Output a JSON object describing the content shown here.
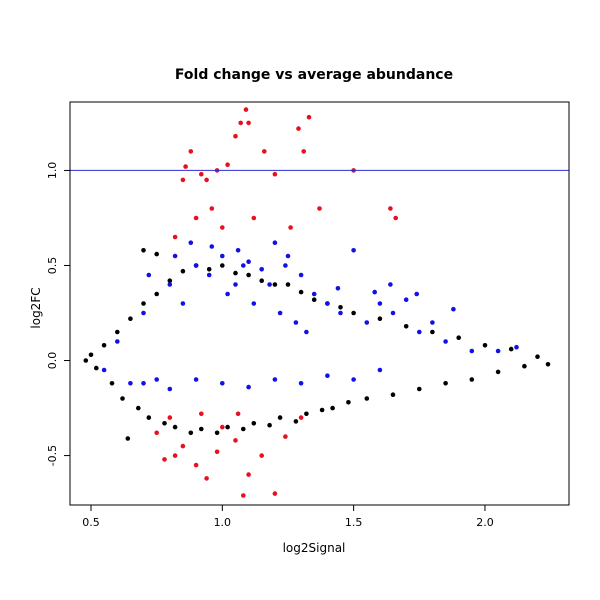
{
  "chart_data": {
    "type": "scatter",
    "title": "Fold change vs average abundance",
    "xlabel": "log2Signal",
    "ylabel": "log2FC",
    "xlim": [
      0.42,
      2.32
    ],
    "ylim": [
      -0.76,
      1.36
    ],
    "x_ticks": [
      {
        "value": 0.5,
        "label": "0.5"
      },
      {
        "value": 1.0,
        "label": "1.0"
      },
      {
        "value": 1.5,
        "label": "1.5"
      },
      {
        "value": 2.0,
        "label": "2.0"
      }
    ],
    "y_ticks": [
      {
        "value": -0.5,
        "label": "-0.5"
      },
      {
        "value": 0.0,
        "label": "0.0"
      },
      {
        "value": 0.5,
        "label": "0.5"
      },
      {
        "value": 1.0,
        "label": "1.0"
      }
    ],
    "reference_line": {
      "axis": "y",
      "value": 1.0,
      "color": "#2b2bd6"
    },
    "grid": false,
    "legend": "none",
    "colors": {
      "black": "#000000",
      "blue": "#1010e8",
      "red": "#e8101e"
    },
    "series": [
      {
        "color": "black",
        "points": [
          [
            0.48,
            0.0
          ],
          [
            0.5,
            0.03
          ],
          [
            0.52,
            -0.04
          ],
          [
            0.55,
            0.08
          ],
          [
            0.58,
            -0.12
          ],
          [
            0.6,
            0.15
          ],
          [
            0.62,
            -0.2
          ],
          [
            0.65,
            0.22
          ],
          [
            0.68,
            -0.25
          ],
          [
            0.7,
            0.3
          ],
          [
            0.72,
            -0.3
          ],
          [
            0.75,
            0.35
          ],
          [
            0.78,
            -0.33
          ],
          [
            0.8,
            0.42
          ],
          [
            0.82,
            -0.35
          ],
          [
            0.85,
            0.47
          ],
          [
            0.88,
            -0.38
          ],
          [
            0.9,
            0.5
          ],
          [
            0.92,
            -0.36
          ],
          [
            0.95,
            0.48
          ],
          [
            0.98,
            -0.38
          ],
          [
            1.0,
            0.5
          ],
          [
            1.02,
            -0.35
          ],
          [
            1.05,
            0.46
          ],
          [
            1.08,
            -0.36
          ],
          [
            1.1,
            0.45
          ],
          [
            1.12,
            -0.33
          ],
          [
            1.15,
            0.42
          ],
          [
            1.18,
            -0.34
          ],
          [
            1.2,
            0.4
          ],
          [
            1.22,
            -0.3
          ],
          [
            1.25,
            0.4
          ],
          [
            1.28,
            -0.32
          ],
          [
            1.3,
            0.36
          ],
          [
            1.32,
            -0.28
          ],
          [
            1.35,
            0.32
          ],
          [
            1.38,
            -0.26
          ],
          [
            1.4,
            0.3
          ],
          [
            1.42,
            -0.25
          ],
          [
            1.45,
            0.28
          ],
          [
            1.48,
            -0.22
          ],
          [
            1.5,
            0.25
          ],
          [
            1.55,
            -0.2
          ],
          [
            1.6,
            0.22
          ],
          [
            1.65,
            -0.18
          ],
          [
            1.7,
            0.18
          ],
          [
            1.75,
            -0.15
          ],
          [
            1.8,
            0.15
          ],
          [
            1.85,
            -0.12
          ],
          [
            1.9,
            0.12
          ],
          [
            1.95,
            -0.1
          ],
          [
            2.0,
            0.08
          ],
          [
            2.05,
            -0.06
          ],
          [
            2.1,
            0.06
          ],
          [
            2.15,
            -0.03
          ],
          [
            2.2,
            0.02
          ],
          [
            2.24,
            -0.02
          ],
          [
            0.7,
            0.58
          ],
          [
            0.75,
            0.56
          ],
          [
            0.64,
            -0.41
          ]
        ]
      },
      {
        "color": "blue",
        "points": [
          [
            0.55,
            -0.05
          ],
          [
            0.6,
            0.1
          ],
          [
            0.65,
            -0.12
          ],
          [
            0.7,
            0.25
          ],
          [
            0.75,
            -0.1
          ],
          [
            0.8,
            0.4
          ],
          [
            0.85,
            0.3
          ],
          [
            0.9,
            0.5
          ],
          [
            0.95,
            0.45
          ],
          [
            1.0,
            0.55
          ],
          [
            1.02,
            0.35
          ],
          [
            1.05,
            0.4
          ],
          [
            1.08,
            0.5
          ],
          [
            1.1,
            0.52
          ],
          [
            1.12,
            0.3
          ],
          [
            1.15,
            0.48
          ],
          [
            1.18,
            0.4
          ],
          [
            1.2,
            0.62
          ],
          [
            1.22,
            0.25
          ],
          [
            1.25,
            0.55
          ],
          [
            1.28,
            0.2
          ],
          [
            1.3,
            0.45
          ],
          [
            1.32,
            0.15
          ],
          [
            1.35,
            0.35
          ],
          [
            1.4,
            0.3
          ],
          [
            1.45,
            0.25
          ],
          [
            1.5,
            0.58
          ],
          [
            1.55,
            0.2
          ],
          [
            1.6,
            0.3
          ],
          [
            1.65,
            0.25
          ],
          [
            1.7,
            0.32
          ],
          [
            1.75,
            0.15
          ],
          [
            1.8,
            0.2
          ],
          [
            1.85,
            0.1
          ],
          [
            1.88,
            0.27
          ],
          [
            1.95,
            0.05
          ],
          [
            2.05,
            0.05
          ],
          [
            2.12,
            0.07
          ],
          [
            0.7,
            -0.12
          ],
          [
            0.8,
            -0.15
          ],
          [
            0.9,
            -0.1
          ],
          [
            1.0,
            -0.12
          ],
          [
            1.1,
            -0.14
          ],
          [
            1.2,
            -0.1
          ],
          [
            1.3,
            -0.12
          ],
          [
            1.4,
            -0.08
          ],
          [
            1.5,
            -0.1
          ],
          [
            1.6,
            -0.05
          ],
          [
            0.72,
            0.45
          ],
          [
            0.82,
            0.55
          ],
          [
            0.88,
            0.62
          ],
          [
            0.96,
            0.6
          ],
          [
            1.06,
            0.58
          ],
          [
            1.24,
            0.5
          ],
          [
            1.44,
            0.38
          ],
          [
            1.58,
            0.36
          ],
          [
            1.64,
            0.4
          ],
          [
            1.74,
            0.35
          ]
        ]
      },
      {
        "color": "red",
        "points": [
          [
            0.82,
            0.65
          ],
          [
            0.85,
            0.95
          ],
          [
            0.86,
            1.02
          ],
          [
            0.88,
            1.1
          ],
          [
            0.9,
            0.75
          ],
          [
            0.92,
            0.98
          ],
          [
            0.94,
            0.95
          ],
          [
            0.96,
            0.8
          ],
          [
            0.98,
            1.0
          ],
          [
            1.0,
            0.7
          ],
          [
            1.02,
            1.03
          ],
          [
            1.05,
            1.18
          ],
          [
            1.07,
            1.25
          ],
          [
            1.09,
            1.32
          ],
          [
            1.1,
            1.25
          ],
          [
            1.12,
            0.75
          ],
          [
            1.16,
            1.1
          ],
          [
            1.2,
            0.98
          ],
          [
            1.26,
            0.7
          ],
          [
            1.29,
            1.22
          ],
          [
            1.31,
            1.1
          ],
          [
            1.33,
            1.28
          ],
          [
            1.37,
            0.8
          ],
          [
            1.5,
            1.0
          ],
          [
            1.64,
            0.8
          ],
          [
            1.66,
            0.75
          ],
          [
            0.75,
            -0.38
          ],
          [
            0.8,
            -0.3
          ],
          [
            0.82,
            -0.5
          ],
          [
            0.85,
            -0.45
          ],
          [
            0.9,
            -0.55
          ],
          [
            0.92,
            -0.28
          ],
          [
            0.94,
            -0.62
          ],
          [
            1.0,
            -0.35
          ],
          [
            1.05,
            -0.42
          ],
          [
            1.08,
            -0.71
          ],
          [
            1.1,
            -0.6
          ],
          [
            1.15,
            -0.5
          ],
          [
            1.2,
            -0.7
          ],
          [
            1.24,
            -0.4
          ],
          [
            1.3,
            -0.3
          ],
          [
            0.78,
            -0.52
          ],
          [
            0.98,
            -0.48
          ],
          [
            1.06,
            -0.28
          ]
        ]
      }
    ]
  }
}
